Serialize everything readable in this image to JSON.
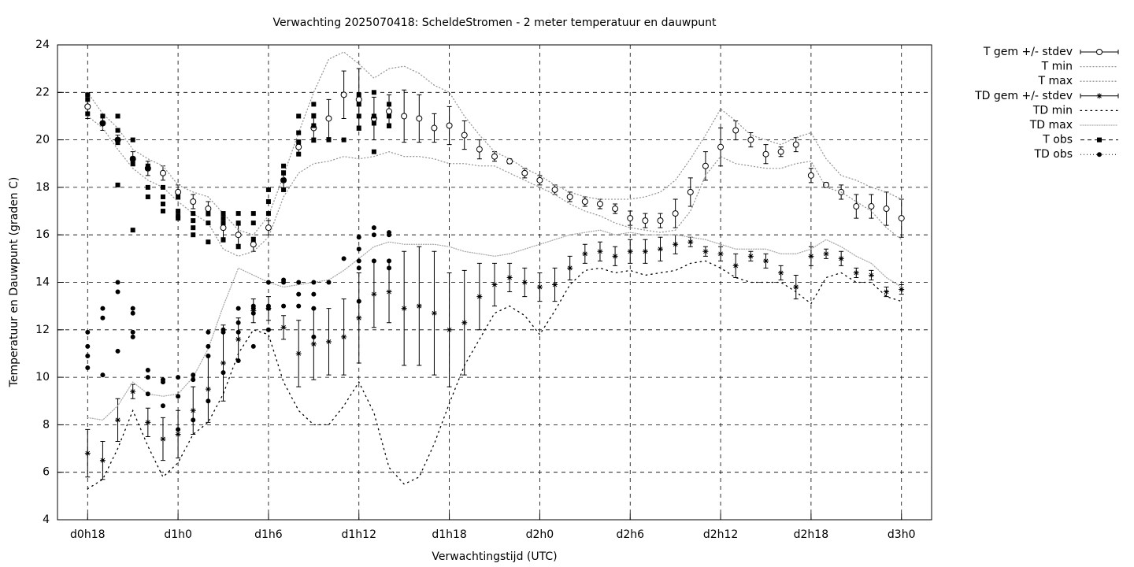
{
  "chart_data": {
    "type": "line",
    "title": "Verwachting 2025070418: ScheldeStromen - 2 meter temperatuur en dauwpunt",
    "x_label": "Verwachtingstijd (UTC)",
    "y_label": "Temperatuur en Dauwpunt (graden C)",
    "xlim": [
      16,
      74
    ],
    "ylim": [
      4,
      24
    ],
    "xticks": [
      {
        "value": 18,
        "label": "d0h18"
      },
      {
        "value": 24,
        "label": "d1h0"
      },
      {
        "value": 30,
        "label": "d1h6"
      },
      {
        "value": 36,
        "label": "d1h12"
      },
      {
        "value": 42,
        "label": "d1h18"
      },
      {
        "value": 48,
        "label": "d2h0"
      },
      {
        "value": 54,
        "label": "d2h6"
      },
      {
        "value": 60,
        "label": "d2h12"
      },
      {
        "value": 66,
        "label": "d2h18"
      },
      {
        "value": 72,
        "label": "d3h0"
      }
    ],
    "yticks": [
      4,
      6,
      8,
      10,
      12,
      14,
      16,
      18,
      20,
      22,
      24
    ],
    "grid": true,
    "legend": "outside-top-right",
    "x": [
      18,
      19,
      20,
      21,
      22,
      23,
      24,
      25,
      26,
      27,
      28,
      29,
      30,
      31,
      32,
      33,
      34,
      35,
      36,
      37,
      38,
      39,
      40,
      41,
      42,
      43,
      44,
      45,
      46,
      47,
      48,
      49,
      50,
      51,
      52,
      53,
      54,
      55,
      56,
      57,
      58,
      59,
      60,
      61,
      62,
      63,
      64,
      65,
      66,
      67,
      68,
      69,
      70,
      71,
      72
    ],
    "series": [
      {
        "name": "T gem +/- stdev",
        "type": "errorbar",
        "marker": "open-circle",
        "color": "#000000",
        "values": [
          21.4,
          20.7,
          20.0,
          19.2,
          18.8,
          18.6,
          17.8,
          17.4,
          17.1,
          16.3,
          16.0,
          15.6,
          16.3,
          18.3,
          19.7,
          20.5,
          20.9,
          21.9,
          21.7,
          20.9,
          21.2,
          21.0,
          20.9,
          20.5,
          20.6,
          20.2,
          19.6,
          19.3,
          19.1,
          18.6,
          18.3,
          17.9,
          17.6,
          17.4,
          17.3,
          17.1,
          16.7,
          16.6,
          16.6,
          16.9,
          17.8,
          18.9,
          19.7,
          20.4,
          20.0,
          19.4,
          19.5,
          19.8,
          18.5,
          18.1,
          17.8,
          17.2,
          17.2,
          17.1,
          16.7
        ],
        "errors": [
          0.5,
          0.3,
          0.2,
          0.3,
          0.3,
          0.3,
          0.3,
          0.3,
          0.3,
          0.6,
          0.4,
          0.3,
          0.3,
          0.4,
          0.3,
          0.6,
          0.8,
          1.0,
          1.3,
          0.9,
          0.7,
          1.1,
          1.0,
          0.6,
          0.8,
          0.6,
          0.4,
          0.2,
          0.1,
          0.2,
          0.2,
          0.2,
          0.2,
          0.2,
          0.2,
          0.2,
          0.3,
          0.3,
          0.3,
          0.6,
          0.6,
          0.6,
          0.8,
          0.4,
          0.3,
          0.4,
          0.2,
          0.3,
          0.3,
          0.1,
          0.3,
          0.5,
          0.5,
          0.7,
          0.8
        ]
      },
      {
        "name": "T min",
        "type": "line",
        "color": "#999999",
        "dash": "1 3",
        "values": [
          21.0,
          20.5,
          19.6,
          18.8,
          18.3,
          18.0,
          17.4,
          16.9,
          16.5,
          15.4,
          15.1,
          15.3,
          15.9,
          17.6,
          18.6,
          19.0,
          19.1,
          19.3,
          19.2,
          19.3,
          19.5,
          19.3,
          19.3,
          19.2,
          19.0,
          19.0,
          18.9,
          18.9,
          18.6,
          18.3,
          18.0,
          17.7,
          17.3,
          17.0,
          16.8,
          16.5,
          16.3,
          16.2,
          16.1,
          16.2,
          17.0,
          18.5,
          19.3,
          19.0,
          18.9,
          18.8,
          18.8,
          19.0,
          19.1,
          18.0,
          17.8,
          17.4,
          17.0,
          16.3,
          15.8
        ]
      },
      {
        "name": "T max",
        "type": "line",
        "color": "#999999",
        "dash": "1 3",
        "values": [
          22.0,
          21.1,
          20.5,
          19.6,
          19.2,
          18.9,
          18.1,
          17.8,
          17.6,
          16.9,
          16.2,
          16.0,
          16.8,
          18.5,
          20.3,
          22.0,
          23.4,
          23.7,
          23.2,
          22.6,
          23.0,
          23.1,
          22.8,
          22.3,
          22.0,
          21.0,
          20.2,
          19.5,
          19.2,
          18.8,
          18.5,
          18.1,
          17.8,
          17.6,
          17.5,
          17.5,
          17.5,
          17.6,
          17.8,
          18.3,
          19.2,
          20.2,
          21.3,
          20.8,
          20.2,
          20.0,
          19.8,
          20.1,
          20.3,
          19.2,
          18.5,
          18.3,
          18.0,
          17.8,
          17.5
        ]
      },
      {
        "name": "TD gem +/- stdev",
        "type": "errorbar",
        "marker": "asterisk",
        "color": "#000000",
        "values": [
          6.8,
          6.5,
          8.2,
          9.4,
          8.1,
          7.4,
          7.6,
          8.6,
          9.5,
          10.6,
          11.6,
          12.8,
          12.9,
          12.1,
          11.0,
          11.4,
          11.5,
          11.7,
          12.5,
          13.5,
          13.6,
          12.9,
          13.0,
          12.7,
          12.0,
          12.3,
          13.4,
          13.9,
          14.2,
          14.0,
          13.8,
          13.9,
          14.6,
          15.2,
          15.3,
          15.1,
          15.3,
          15.3,
          15.4,
          15.6,
          15.7,
          15.3,
          15.2,
          14.7,
          15.1,
          14.9,
          14.4,
          13.8,
          15.1,
          15.2,
          15.0,
          14.4,
          14.3,
          13.6,
          13.7
        ],
        "errors": [
          1.0,
          0.8,
          0.9,
          0.3,
          0.6,
          0.9,
          1.0,
          1.0,
          1.4,
          1.6,
          0.9,
          0.5,
          0.5,
          0.5,
          1.4,
          1.5,
          1.4,
          1.6,
          1.9,
          1.4,
          1.3,
          2.4,
          2.5,
          2.6,
          2.4,
          2.2,
          1.4,
          0.9,
          0.6,
          0.6,
          0.6,
          0.7,
          0.5,
          0.4,
          0.4,
          0.4,
          0.5,
          0.5,
          0.5,
          0.4,
          0.2,
          0.2,
          0.3,
          0.5,
          0.2,
          0.3,
          0.3,
          0.5,
          0.4,
          0.2,
          0.3,
          0.2,
          0.2,
          0.2,
          0.2
        ]
      },
      {
        "name": "TD min",
        "type": "line",
        "color": "#000000",
        "dash": "1.5 5",
        "values": [
          5.3,
          5.7,
          7.0,
          8.6,
          7.1,
          5.8,
          6.4,
          7.6,
          8.1,
          9.3,
          11.0,
          12.0,
          11.8,
          9.8,
          8.6,
          8.0,
          8.0,
          8.8,
          9.8,
          8.5,
          6.2,
          5.5,
          5.8,
          7.2,
          8.9,
          10.5,
          11.6,
          12.7,
          13.0,
          12.6,
          11.8,
          12.8,
          13.9,
          14.5,
          14.6,
          14.4,
          14.5,
          14.3,
          14.4,
          14.5,
          14.8,
          14.9,
          14.6,
          14.2,
          14.0,
          14.0,
          14.0,
          13.6,
          13.1,
          14.2,
          14.4,
          14.0,
          14.0,
          13.4,
          13.2
        ]
      },
      {
        "name": "TD max",
        "type": "line",
        "color": "#aaaaaa",
        "dash": "1 2",
        "values": [
          8.3,
          8.2,
          8.8,
          9.8,
          9.3,
          9.2,
          9.3,
          10.0,
          11.2,
          13.0,
          14.6,
          14.3,
          14.0,
          13.8,
          13.9,
          14.0,
          14.1,
          14.5,
          15.0,
          15.5,
          15.7,
          15.6,
          15.6,
          15.6,
          15.5,
          15.3,
          15.2,
          15.1,
          15.2,
          15.4,
          15.6,
          15.8,
          16.0,
          16.1,
          16.2,
          16.0,
          16.1,
          16.0,
          16.0,
          16.0,
          15.9,
          15.8,
          15.6,
          15.4,
          15.4,
          15.4,
          15.2,
          15.2,
          15.4,
          15.8,
          15.5,
          15.1,
          14.8,
          14.2,
          13.8
        ]
      },
      {
        "name": "T obs",
        "type": "scatter",
        "marker": "square",
        "color": "#000000",
        "dash": "5 4",
        "x": [
          18,
          18,
          18,
          19,
          19,
          20,
          20,
          20,
          20,
          20,
          21,
          21,
          21,
          21,
          22,
          22,
          22,
          22,
          23,
          23,
          23,
          23,
          24,
          24,
          24,
          24,
          25,
          25,
          25,
          25,
          26,
          26,
          26,
          27,
          27,
          27,
          27,
          28,
          28,
          28,
          29,
          29,
          29,
          30,
          30,
          30,
          31,
          31,
          31,
          31,
          32,
          32,
          32,
          32,
          33,
          33,
          33,
          33,
          34,
          35,
          36,
          36,
          36,
          36,
          37,
          37,
          37,
          37,
          38,
          38,
          38
        ],
        "values": [
          21.9,
          21.7,
          21.1,
          21.0,
          20.7,
          21.0,
          20.4,
          20.0,
          19.9,
          18.1,
          20.0,
          19.2,
          19.0,
          16.2,
          18.9,
          18.8,
          18.0,
          17.6,
          18.0,
          17.6,
          17.3,
          17.0,
          17.6,
          17.0,
          16.8,
          16.7,
          16.9,
          16.6,
          16.3,
          16.0,
          16.9,
          16.5,
          15.7,
          16.9,
          16.7,
          16.5,
          15.8,
          16.9,
          16.5,
          15.5,
          16.9,
          16.5,
          15.8,
          17.9,
          17.4,
          16.9,
          18.9,
          18.6,
          18.3,
          17.9,
          21.0,
          20.3,
          19.9,
          19.4,
          21.5,
          21.0,
          20.6,
          20.0,
          20.0,
          20.0,
          21.9,
          21.5,
          21.0,
          20.5,
          22.0,
          21.0,
          20.7,
          19.5,
          21.5,
          21.0,
          20.6
        ]
      },
      {
        "name": "TD obs",
        "type": "scatter",
        "marker": "dot",
        "color": "#000000",
        "dash": "1 3",
        "x": [
          18,
          18,
          18,
          18,
          19,
          19,
          19,
          20,
          20,
          20,
          21,
          21,
          21,
          21,
          22,
          22,
          22,
          23,
          23,
          23,
          24,
          24,
          24,
          25,
          25,
          25,
          26,
          26,
          26,
          26,
          27,
          27,
          27,
          28,
          28,
          28,
          28,
          29,
          29,
          29,
          29,
          30,
          30,
          30,
          30,
          31,
          31,
          31,
          32,
          32,
          32,
          33,
          33,
          33,
          33,
          34,
          35,
          36,
          36,
          36,
          36,
          36,
          37,
          37,
          37,
          38,
          38,
          38,
          38
        ],
        "values": [
          11.9,
          11.3,
          10.9,
          10.4,
          12.9,
          12.5,
          10.1,
          14.0,
          13.6,
          11.1,
          12.9,
          12.7,
          11.9,
          11.7,
          10.3,
          10.0,
          9.3,
          9.9,
          9.8,
          8.8,
          10.0,
          9.2,
          7.8,
          10.1,
          9.9,
          8.2,
          11.9,
          11.3,
          10.9,
          9.0,
          12.0,
          11.9,
          10.2,
          12.9,
          12.3,
          11.9,
          10.7,
          13.0,
          12.9,
          12.7,
          11.3,
          14.0,
          13.0,
          12.9,
          12.0,
          14.1,
          14.0,
          13.0,
          14.0,
          13.5,
          13.0,
          14.0,
          13.5,
          12.9,
          11.7,
          14.0,
          15.0,
          15.9,
          15.4,
          14.9,
          14.6,
          13.2,
          16.3,
          16.0,
          14.9,
          16.1,
          16.0,
          14.9,
          14.6
        ]
      }
    ]
  }
}
